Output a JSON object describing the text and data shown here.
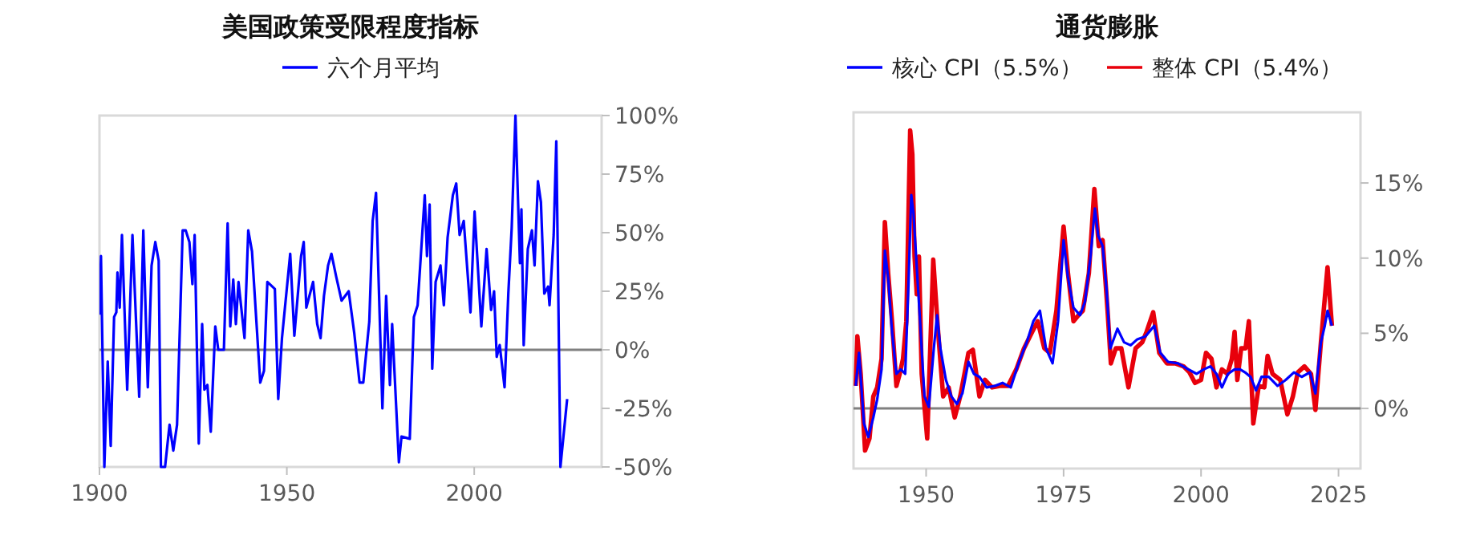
{
  "chart_data": [
    {
      "type": "line",
      "title": "美国政策受限程度指标",
      "legend": "top",
      "xlim": [
        1900,
        2034
      ],
      "xticks": [
        1900,
        1950,
        2000
      ],
      "ylim": [
        -50,
        100
      ],
      "yticks": [
        {
          "value": -50,
          "label": "-50%"
        },
        {
          "value": -25,
          "label": "-25%"
        },
        {
          "value": 0,
          "label": "0%"
        },
        {
          "value": 25,
          "label": "25%"
        },
        {
          "value": 50,
          "label": "50%"
        },
        {
          "value": 75,
          "label": "75%"
        },
        {
          "value": 100,
          "label": "100%"
        }
      ],
      "grid": false,
      "ref_lines": [
        {
          "axis": "y",
          "value": 0,
          "color": "#808080"
        }
      ],
      "series": [
        {
          "name": "六个月平均",
          "color": "#0000ff",
          "x": [
            1900,
            1900.4,
            1901.3,
            1902.2,
            1903,
            1903.9,
            1904.5,
            1904.8,
            1905.4,
            1906,
            1907.4,
            1908.8,
            1910.6,
            1911.7,
            1912.9,
            1913.9,
            1914.9,
            1915.8,
            1916.4,
            1917.5,
            1918.7,
            1919.7,
            1920.7,
            1922.2,
            1923,
            1924,
            1924.8,
            1925.4,
            1926.5,
            1927.4,
            1928,
            1928.8,
            1929.7,
            1930.9,
            1931.7,
            1933.2,
            1934.2,
            1934.9,
            1935.7,
            1936.4,
            1937.1,
            1938.7,
            1939.7,
            1940.7,
            1942.9,
            1943.9,
            1944.8,
            1946.8,
            1947.7,
            1948.7,
            1950.9,
            1952,
            1953.8,
            1954.5,
            1955.2,
            1957,
            1958.1,
            1959,
            1959.9,
            1961,
            1961.9,
            1963.2,
            1964.6,
            1966.5,
            1968,
            1969.4,
            1970.4,
            1972,
            1972.9,
            1973.8,
            1975.5,
            1976.5,
            1977.5,
            1978.1,
            1979.9,
            1980.6,
            1982.8,
            1983.9,
            1984.9,
            1986.8,
            1987.4,
            1988.1,
            1988.8,
            1989.7,
            1991,
            1991.9,
            1992.9,
            1994.3,
            1995.2,
            1996.1,
            1997.2,
            1999,
            2000.1,
            2001.9,
            2003.3,
            2004.5,
            2005.3,
            2006,
            2006.8,
            2008.1,
            2009.1,
            2010,
            2011,
            2012.2,
            2012.6,
            2013.2,
            2014.3,
            2015.4,
            2016.1,
            2017,
            2017.8,
            2018.7,
            2019.7,
            2020.1,
            2021.2,
            2021.9,
            2022.3,
            2023,
            2024.8
          ],
          "values": [
            15,
            40,
            -50,
            -5,
            -41,
            14,
            16,
            33,
            18,
            49,
            -17,
            49,
            -20,
            51,
            -16,
            36,
            46,
            38,
            -50,
            -50,
            -32,
            -43,
            -32,
            51,
            51,
            46,
            28,
            49,
            -40,
            11,
            -17,
            -15,
            -35,
            10,
            0,
            0,
            54,
            10,
            30,
            11,
            29,
            5,
            51,
            42,
            -14,
            -9,
            29,
            26,
            -21,
            5,
            41,
            6,
            40,
            46,
            18,
            29,
            11,
            5,
            23,
            36,
            41,
            31,
            21,
            25,
            7,
            -14,
            -14,
            12,
            55,
            67,
            -25,
            23,
            -15,
            11,
            -48,
            -37,
            -38,
            14,
            19,
            66,
            40,
            62,
            -8,
            29,
            36,
            19,
            48,
            66,
            71,
            49,
            55,
            16,
            59,
            10,
            43,
            17,
            25,
            -3,
            2,
            -16,
            24,
            52,
            100,
            37,
            60,
            2,
            43,
            51,
            36,
            72,
            63,
            24,
            27,
            19,
            49,
            89,
            41,
            -50,
            -21
          ]
        }
      ]
    },
    {
      "type": "line",
      "title": "通货膨胀",
      "legend": "top",
      "xlim": [
        1936.8,
        2029
      ],
      "xticks": [
        1950,
        1975,
        2000,
        2025
      ],
      "ylim": [
        -4,
        19.7
      ],
      "yticks": [
        {
          "value": 0,
          "label": "0%"
        },
        {
          "value": 5,
          "label": "5%"
        },
        {
          "value": 10,
          "label": "10%"
        },
        {
          "value": 15,
          "label": "15%"
        }
      ],
      "grid": false,
      "ref_lines": [
        {
          "axis": "y",
          "value": 0,
          "color": "#808080"
        }
      ],
      "series": [
        {
          "name": "核心 CPI（5.5%）",
          "color": "#0000ff",
          "x": [
            1937.2,
            1937.8,
            1938.7,
            1939.5,
            1940.4,
            1941.1,
            1941.9,
            1942.5,
            1943.1,
            1943.8,
            1944.6,
            1945.4,
            1946.2,
            1946.8,
            1947.3,
            1947.7,
            1948.3,
            1948.9,
            1949.7,
            1950.5,
            1951.4,
            1952,
            1952.6,
            1953.6,
            1954.6,
            1955.6,
            1956.6,
            1957.7,
            1958.7,
            1959.7,
            1961,
            1962.5,
            1963.9,
            1965.4,
            1966.9,
            1968.3,
            1969.5,
            1970.7,
            1971.8,
            1973,
            1974,
            1975,
            1975.8,
            1976.8,
            1978,
            1978.9,
            1979.9,
            1980.7,
            1981.3,
            1982.1,
            1982.8,
            1983.5,
            1984.8,
            1986,
            1987.2,
            1988.4,
            1989.9,
            1991.5,
            1992.6,
            1994,
            1995.8,
            1997.7,
            1999.2,
            2000.5,
            2001.7,
            2002.8,
            2003.8,
            2004.9,
            2006.1,
            2007.1,
            2008,
            2009,
            2010,
            2011,
            2012.3,
            2013.9,
            2015.4,
            2016.9,
            2018.3,
            2019.8,
            2020.8,
            2021.8,
            2022.5,
            2023,
            2023.8
          ],
          "values": [
            1.5,
            3.7,
            -1,
            -1.9,
            -0.6,
            0.6,
            2.6,
            10.5,
            8.7,
            5.1,
            2.3,
            2.6,
            2.3,
            8.3,
            14.2,
            13,
            9.4,
            5.8,
            0.8,
            0.1,
            4,
            6.2,
            4,
            1.9,
            0.8,
            0.3,
            1,
            3.1,
            2.3,
            2.1,
            1.4,
            1.5,
            1.7,
            1.4,
            3.1,
            4.4,
            5.8,
            6.5,
            4,
            3,
            5.8,
            11.2,
            8.7,
            6.7,
            6.2,
            7.1,
            10.1,
            13.3,
            11.5,
            10.8,
            8,
            4,
            5.3,
            4.4,
            4.2,
            4.6,
            4.8,
            5.5,
            3.7,
            3.1,
            3,
            2.6,
            2.3,
            2.6,
            2.8,
            2.3,
            1.4,
            2.3,
            2.6,
            2.6,
            2.4,
            2.1,
            1.2,
            2.1,
            2.1,
            1.5,
            1.9,
            2.4,
            2.1,
            2.4,
            1,
            4.4,
            5.5,
            6.5,
            5.5
          ]
        },
        {
          "name": "整体 CPI（5.4%）",
          "color": "#e8000b",
          "x": [
            1937.2,
            1937.5,
            1938.1,
            1938.9,
            1939.7,
            1940.4,
            1941.1,
            1941.9,
            1942.5,
            1943.1,
            1943.8,
            1944.6,
            1945.2,
            1945.8,
            1946.4,
            1947.1,
            1947.5,
            1947.9,
            1948.3,
            1948.7,
            1949.2,
            1950.2,
            1951.3,
            1952.1,
            1953.1,
            1954.1,
            1955.2,
            1956.2,
            1957.7,
            1958.5,
            1959.7,
            1960.7,
            1962,
            1963.4,
            1964.9,
            1966.4,
            1967.8,
            1969.3,
            1970.3,
            1971.5,
            1972.5,
            1973.7,
            1975,
            1975.8,
            1976.8,
            1977.7,
            1978.5,
            1979.6,
            1980.6,
            1981.4,
            1982.1,
            1983,
            1983.6,
            1984.5,
            1985.5,
            1986.8,
            1988.1,
            1989.3,
            1990.1,
            1991.3,
            1992.4,
            1993.8,
            1995.3,
            1996.8,
            1997.9,
            1998.9,
            2000,
            2000.9,
            2001.9,
            2002.8,
            2003.8,
            2004.8,
            2005.6,
            2006.1,
            2006.6,
            2007.3,
            2008.1,
            2008.7,
            2009.5,
            2010.5,
            2011.5,
            2012.1,
            2013,
            2014.4,
            2015.7,
            2016.7,
            2017.6,
            2018.8,
            2020,
            2020.8,
            2021.8,
            2022.5,
            2023,
            2023.8
          ],
          "values": [
            1.5,
            4.8,
            2.3,
            -2.8,
            -2,
            0.8,
            1.4,
            3.3,
            12.4,
            9,
            5.8,
            1.5,
            2.3,
            3.3,
            5.8,
            18.5,
            16.9,
            10.1,
            7.6,
            10.1,
            2.3,
            -2,
            9.9,
            5.5,
            0.8,
            1.4,
            -0.6,
            0.8,
            3.7,
            3.9,
            0.8,
            1.9,
            1.4,
            1.5,
            1.5,
            2.6,
            4,
            5.1,
            5.8,
            4,
            3.7,
            6.5,
            12.1,
            9,
            5.8,
            6.2,
            6.5,
            9,
            14.6,
            10.8,
            11.2,
            6.5,
            3,
            4,
            4,
            1.4,
            4,
            4.4,
            5.1,
            6.4,
            3.7,
            3,
            3,
            2.8,
            2.4,
            1.7,
            1.9,
            3.7,
            3.3,
            1.4,
            2.6,
            2.3,
            3.3,
            5.1,
            1.9,
            4,
            4,
            5.8,
            -1,
            1.5,
            1.4,
            3.5,
            2.3,
            1.9,
            -0.4,
            0.8,
            2.4,
            2.8,
            2.3,
            -0.1,
            4.4,
            7.3,
            9.4,
            5.5
          ]
        }
      ]
    }
  ]
}
